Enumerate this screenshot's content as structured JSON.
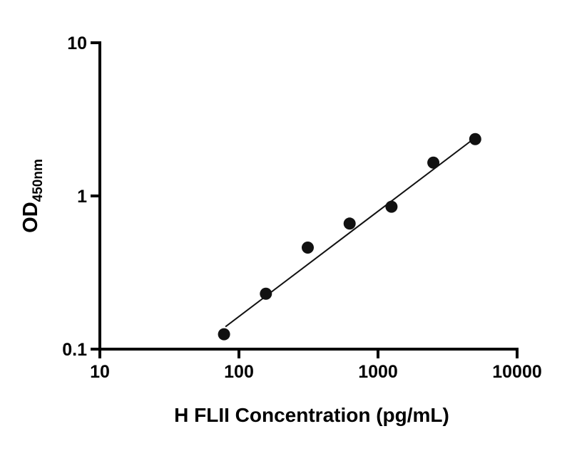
{
  "chart_data": {
    "type": "scatter",
    "title": "",
    "xlabel": "H FLII Concentration (pg/mL)",
    "ylabel_main": "OD",
    "ylabel_sub": "450nm",
    "x_scale": "log",
    "y_scale": "log",
    "xlim": [
      10,
      10000
    ],
    "ylim": [
      0.1,
      10
    ],
    "x_ticks": [
      10,
      100,
      1000,
      10000
    ],
    "x_tick_labels": [
      "10",
      "100",
      "1000",
      "10000"
    ],
    "y_ticks": [
      0.1,
      1,
      10
    ],
    "y_tick_labels": [
      "0.1",
      "1",
      "10"
    ],
    "grid": false,
    "legend": "none",
    "points": [
      {
        "x": 78.125,
        "y": 0.125
      },
      {
        "x": 156.25,
        "y": 0.23
      },
      {
        "x": 312.5,
        "y": 0.46
      },
      {
        "x": 625,
        "y": 0.66
      },
      {
        "x": 1250,
        "y": 0.85
      },
      {
        "x": 2500,
        "y": 1.65
      },
      {
        "x": 5000,
        "y": 2.35
      }
    ],
    "fit_line": {
      "x1": 80,
      "y1": 0.14,
      "x2": 5000,
      "y2": 2.4
    },
    "colors": {
      "points": "#111111",
      "line": "#111111",
      "axis": "#000000"
    }
  }
}
